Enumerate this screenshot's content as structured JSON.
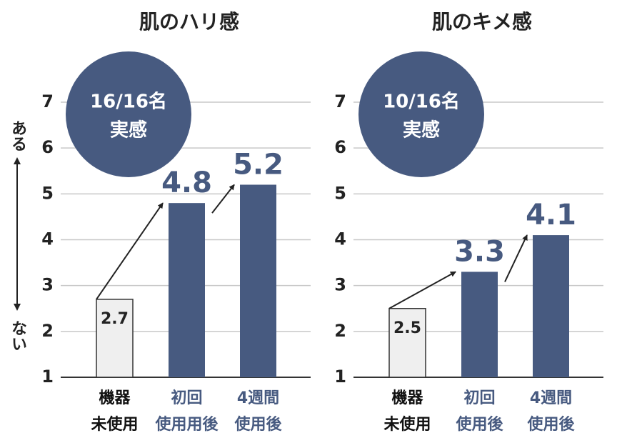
{
  "chart_data": [
    {
      "type": "bar",
      "title": "肌のハリ感",
      "annotation": [
        "16/16名",
        "実感"
      ],
      "y_axis_labels": {
        "top": "ある",
        "bottom": "ない"
      },
      "categories": [
        [
          "機器",
          "未使用"
        ],
        [
          "初回",
          "使用用後"
        ],
        [
          "4週間",
          "使用後"
        ]
      ],
      "values": [
        2.7,
        4.8,
        5.2
      ],
      "colors": [
        "#efefef",
        "#475a80",
        "#475a80"
      ],
      "category_colors": [
        "#111111",
        "#475a80",
        "#475a80"
      ],
      "ylim": [
        1,
        7
      ],
      "yticks": [
        1,
        2,
        3,
        4,
        5,
        6,
        7
      ],
      "grid": true
    },
    {
      "type": "bar",
      "title": "肌のキメ感",
      "annotation": [
        "10/16名",
        "実感"
      ],
      "categories": [
        [
          "機器",
          "未使用"
        ],
        [
          "初回",
          "使用後"
        ],
        [
          "4週間",
          "使用後"
        ]
      ],
      "values": [
        2.5,
        3.3,
        4.1
      ],
      "colors": [
        "#efefef",
        "#475a80",
        "#475a80"
      ],
      "category_colors": [
        "#111111",
        "#475a80",
        "#475a80"
      ],
      "ylim": [
        1,
        7
      ],
      "yticks": [
        1,
        2,
        3,
        4,
        5,
        6,
        7
      ],
      "grid": true
    }
  ]
}
